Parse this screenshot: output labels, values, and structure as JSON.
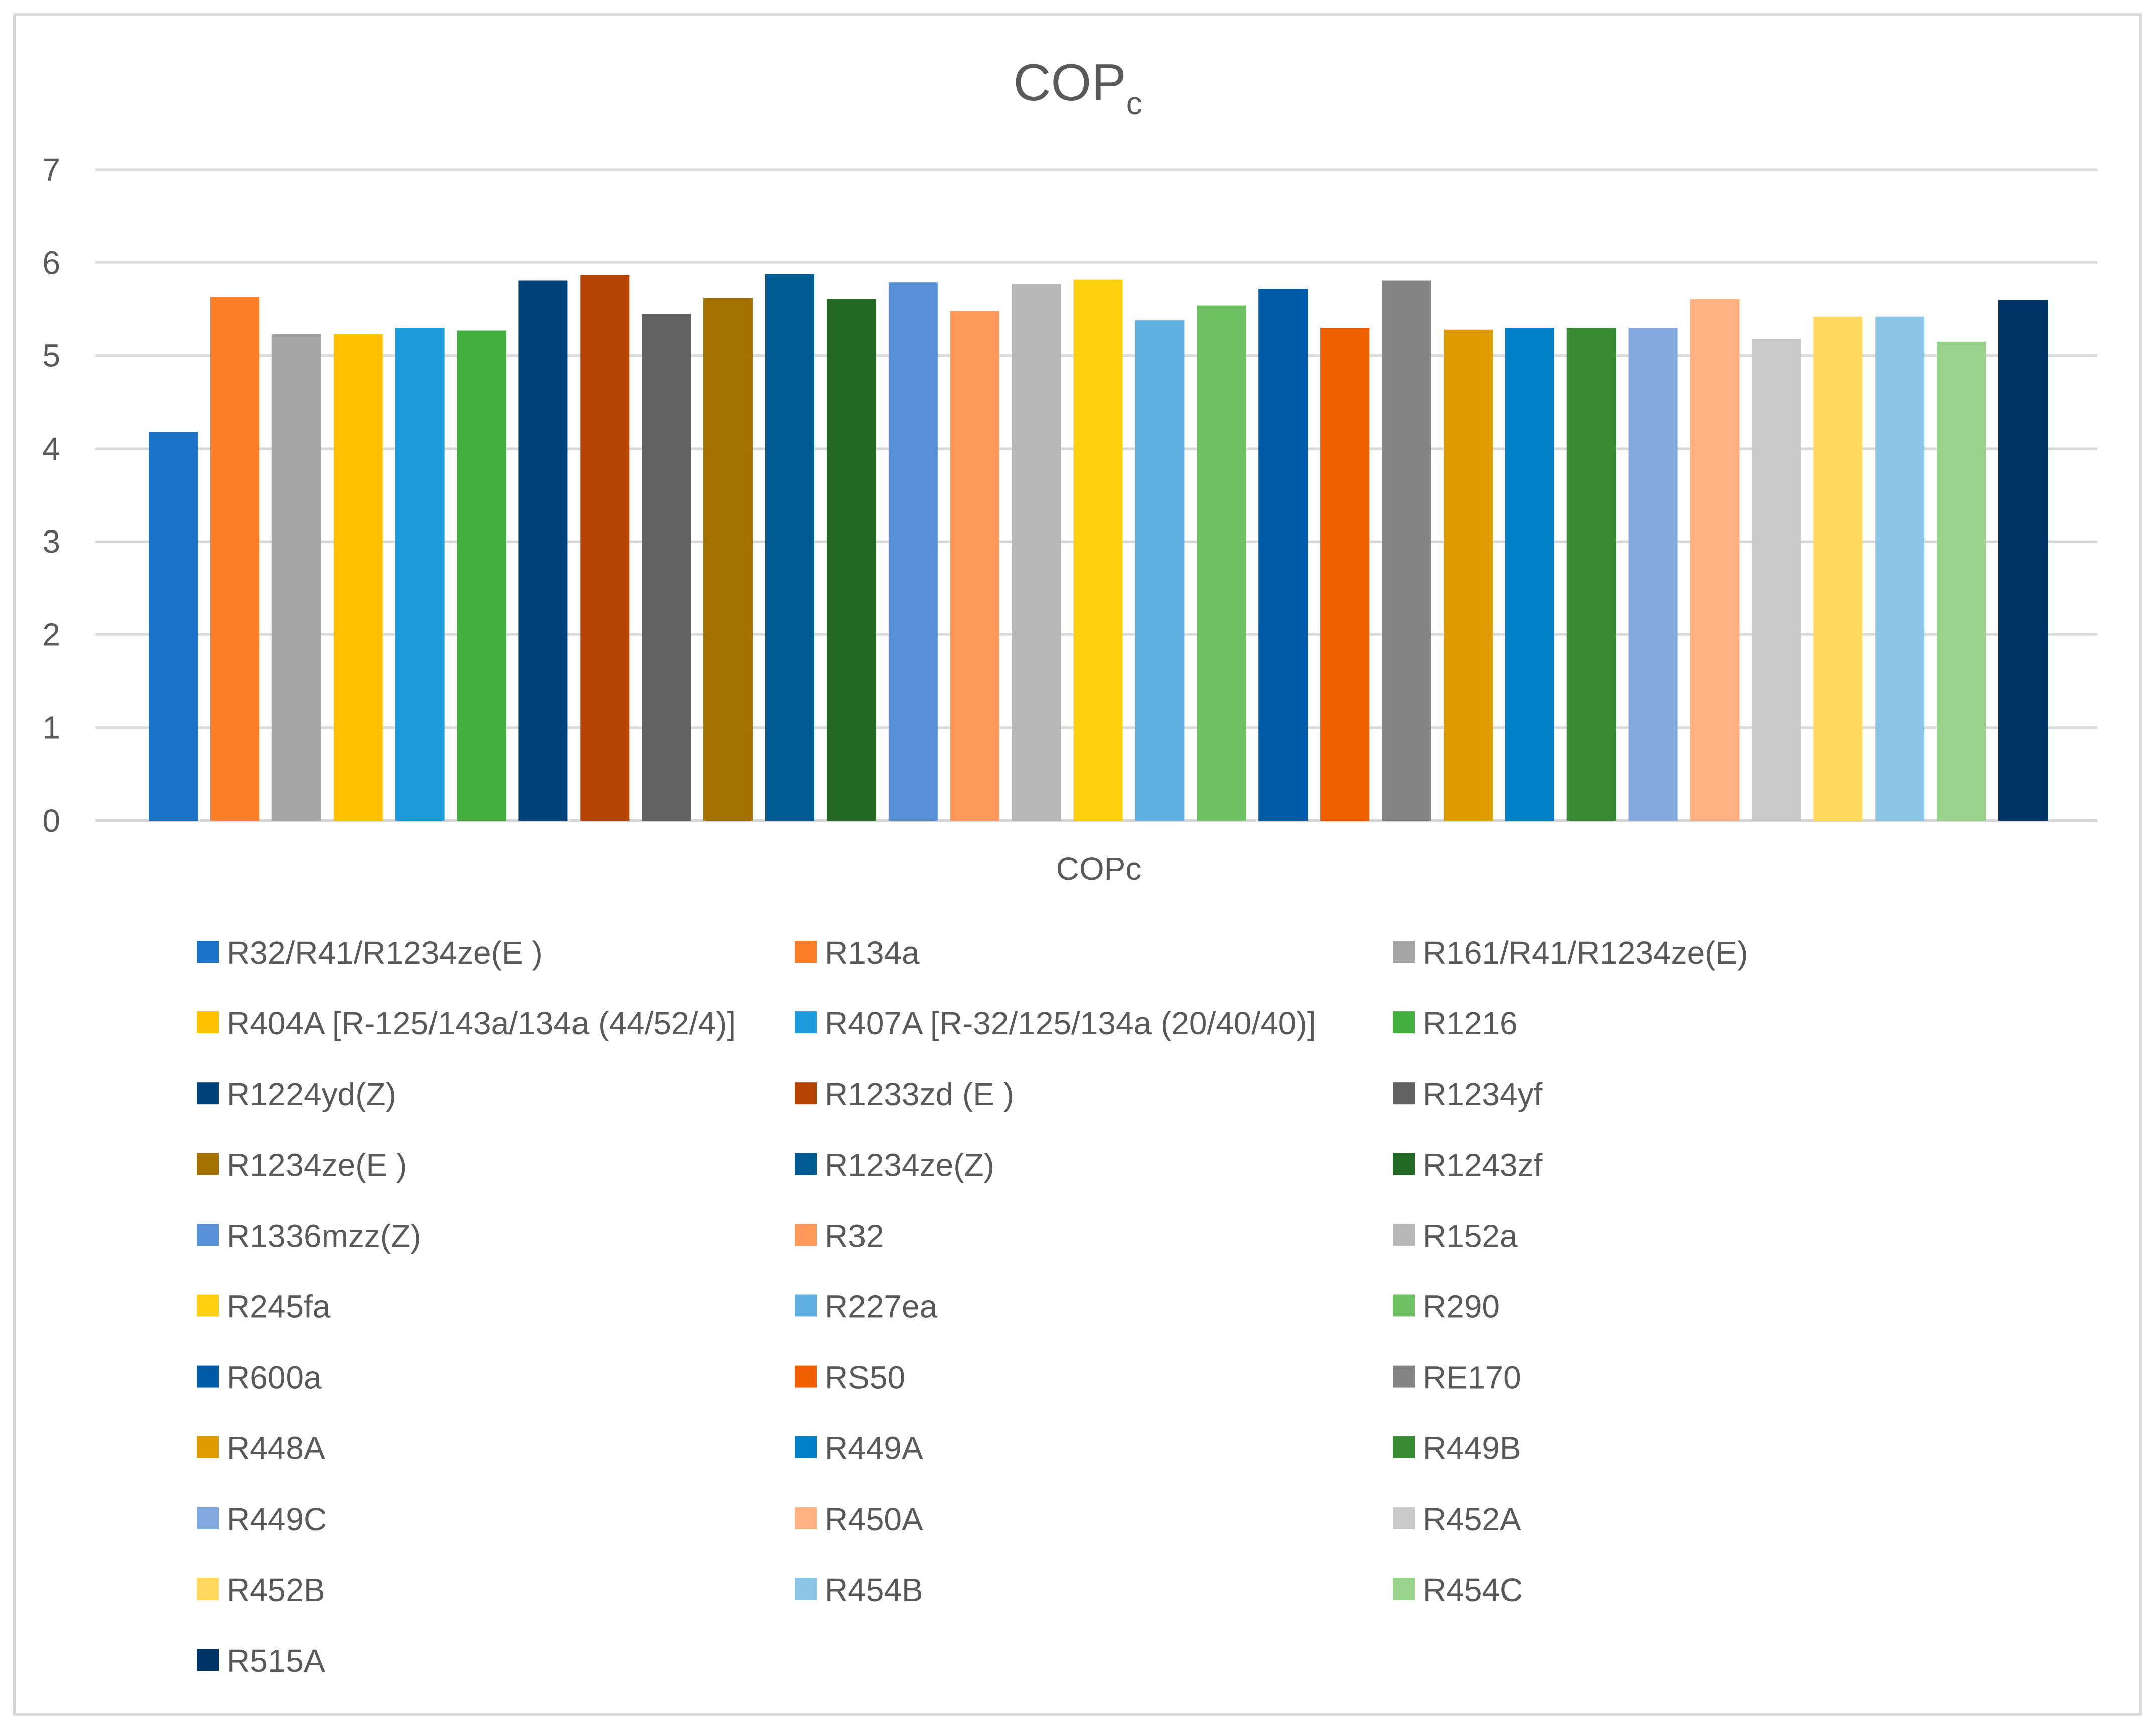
{
  "chart_data": {
    "type": "bar",
    "title": "COP",
    "title_subscript": "c",
    "xlabel": "COPc",
    "ylabel": "",
    "categories": [
      "COPc"
    ],
    "ylim": [
      0,
      7
    ],
    "yticks": [
      "0",
      "1",
      "2",
      "3",
      "4",
      "5",
      "6",
      "7"
    ],
    "grid": true,
    "legend_position": "bottom",
    "series": [
      {
        "name": "R32/R41/R1234ze(E )",
        "value": 4.18,
        "color": "#1A73C9"
      },
      {
        "name": "R134a",
        "value": 5.63,
        "color": "#FD7E28"
      },
      {
        "name": "R161/R41/R1234ze(E)",
        "value": 5.23,
        "color": "#A5A5A5"
      },
      {
        "name": "R404A [R-125/143a/134a (44/52/4)]",
        "value": 5.23,
        "color": "#FFC000"
      },
      {
        "name": "R407A [R-32/125/134a (20/40/40)]",
        "value": 5.3,
        "color": "#1E9BDB"
      },
      {
        "name": "R1216",
        "value": 5.27,
        "color": "#43AF3F"
      },
      {
        "name": "R1224yd(Z)",
        "value": 5.81,
        "color": "#00437A"
      },
      {
        "name": "R1233zd (E )",
        "value": 5.87,
        "color": "#B44304"
      },
      {
        "name": "R1234yf",
        "value": 5.45,
        "color": "#636363"
      },
      {
        "name": "R1234ze(E )",
        "value": 5.62,
        "color": "#A47300"
      },
      {
        "name": "R1234ze(Z)",
        "value": 5.88,
        "color": "#005B92"
      },
      {
        "name": "R1243zf",
        "value": 5.61,
        "color": "#236823"
      },
      {
        "name": "R1336mzz(Z)",
        "value": 5.79,
        "color": "#5790D6"
      },
      {
        "name": "R32",
        "value": 5.48,
        "color": "#FE985A"
      },
      {
        "name": "R152a",
        "value": 5.77,
        "color": "#B7B7B7"
      },
      {
        "name": "R245fa",
        "value": 5.82,
        "color": "#FFD00F"
      },
      {
        "name": "R227ea",
        "value": 5.38,
        "color": "#5FB0E1"
      },
      {
        "name": "R290",
        "value": 5.54,
        "color": "#6EC163"
      },
      {
        "name": "R600a",
        "value": 5.72,
        "color": "#005CA8"
      },
      {
        "name": "RS50",
        "value": 5.3,
        "color": "#EF6100"
      },
      {
        "name": "RE170",
        "value": 5.81,
        "color": "#848484"
      },
      {
        "name": "R448A",
        "value": 5.28,
        "color": "#DD9B00"
      },
      {
        "name": "R449A",
        "value": 5.3,
        "color": "#0080C6"
      },
      {
        "name": "R449B",
        "value": 5.3,
        "color": "#388A34"
      },
      {
        "name": "R449C",
        "value": 5.3,
        "color": "#82AADF"
      },
      {
        "name": "R450A",
        "value": 5.61,
        "color": "#FFB181"
      },
      {
        "name": "R452A",
        "value": 5.18,
        "color": "#C9C9C9"
      },
      {
        "name": "R452B",
        "value": 5.42,
        "color": "#FFD95E"
      },
      {
        "name": "R454B",
        "value": 5.42,
        "color": "#8CC4E6"
      },
      {
        "name": "R454C",
        "value": 5.15,
        "color": "#97D38A"
      },
      {
        "name": "R515A",
        "value": 5.6,
        "color": "#003466"
      }
    ]
  }
}
